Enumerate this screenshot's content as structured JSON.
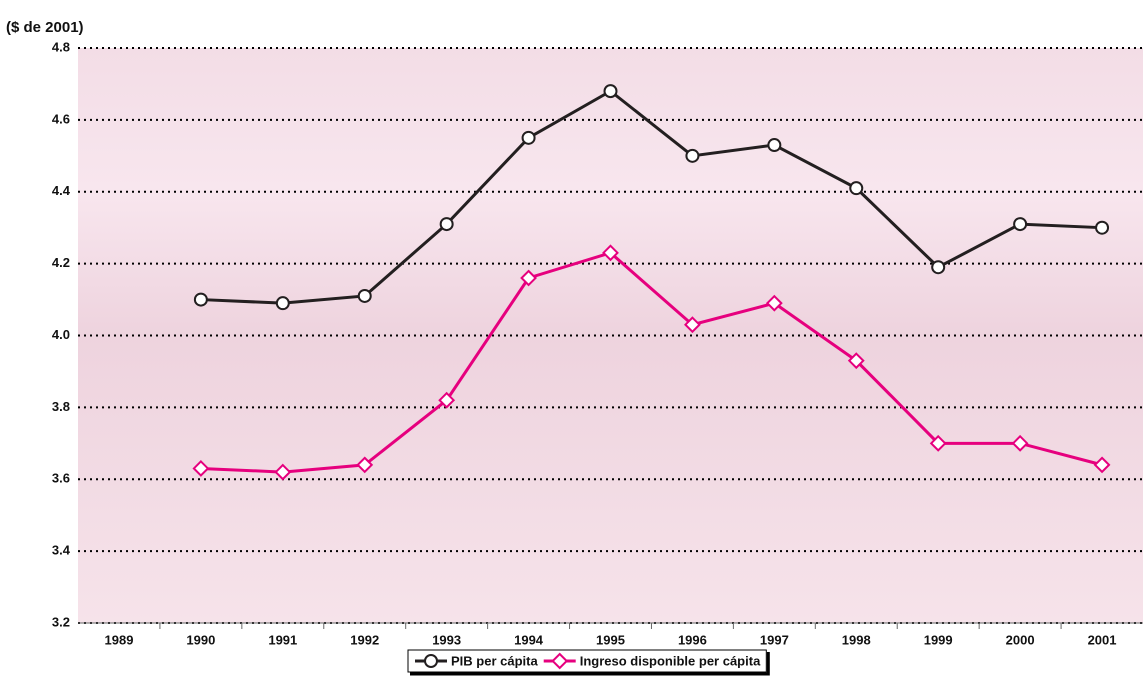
{
  "chart_data": {
    "type": "line",
    "y_label": "($ de 2001)",
    "categories": [
      "1989",
      "1990",
      "1991",
      "1992",
      "1993",
      "1994",
      "1995",
      "1996",
      "1997",
      "1998",
      "1999",
      "2000",
      "2001"
    ],
    "series": [
      {
        "name": "PIB per cápita",
        "color": "#231f20",
        "marker": "circle",
        "values": [
          null,
          4.1,
          4.09,
          4.11,
          4.31,
          4.55,
          4.68,
          4.5,
          4.53,
          4.41,
          4.19,
          4.31,
          4.3
        ]
      },
      {
        "name": "Ingreso disponible per cápita",
        "color": "#e6007e",
        "marker": "diamond",
        "values": [
          null,
          3.63,
          3.62,
          3.64,
          3.82,
          4.16,
          4.23,
          4.03,
          4.09,
          3.93,
          3.7,
          3.7,
          3.64
        ]
      }
    ],
    "ylim": [
      3.2,
      4.8
    ],
    "yticks": [
      3.2,
      3.4,
      3.6,
      3.8,
      {
        "value": 4,
        "label": "4.0"
      },
      4.2,
      4.4,
      4.6,
      4.8
    ],
    "grid": true,
    "legend": "bottom"
  }
}
